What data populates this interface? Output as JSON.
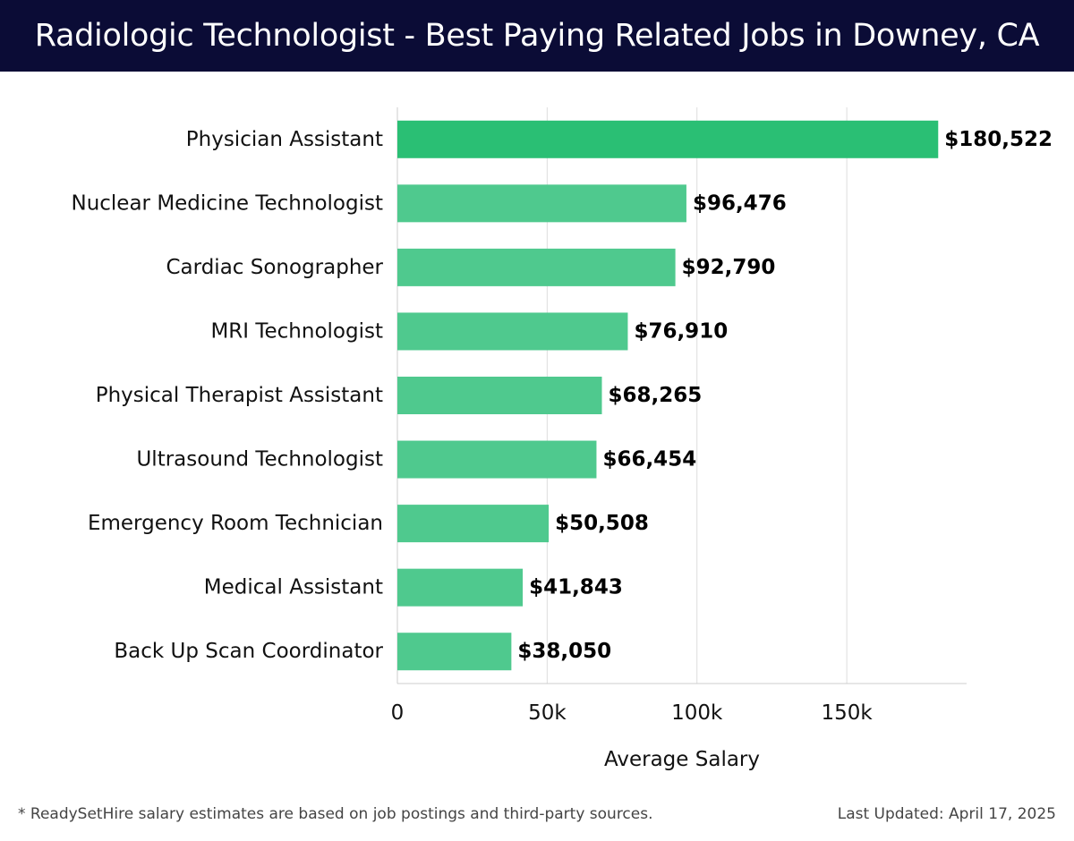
{
  "header": {
    "title": "Radiologic Technologist - Best Paying Related Jobs in Downey, CA"
  },
  "footer": {
    "note": "* ReadySetHire salary estimates are based on job postings and third-party sources.",
    "updated": "Last Updated: April 17, 2025"
  },
  "colors": {
    "header_bg": "#0b0c36",
    "bar_top": "#2abf74",
    "bar": "#4fc98e",
    "grid": "#dddddd"
  },
  "chart_data": {
    "type": "bar",
    "orientation": "horizontal",
    "title": "Radiologic Technologist - Best Paying Related Jobs in Downey, CA",
    "xlabel": "Average Salary",
    "ylabel": "",
    "xlim": [
      0,
      190000
    ],
    "xticks": [
      0,
      50000,
      100000,
      150000
    ],
    "xtick_labels": [
      "0",
      "50k",
      "100k",
      "150k"
    ],
    "grid": "vertical",
    "categories": [
      "Physician Assistant",
      "Nuclear Medicine Technologist",
      "Cardiac Sonographer",
      "MRI Technologist",
      "Physical Therapist Assistant",
      "Ultrasound Technologist",
      "Emergency Room Technician",
      "Medical Assistant",
      "Back Up Scan Coordinator"
    ],
    "values": [
      180522,
      96476,
      92790,
      76910,
      68265,
      66454,
      50508,
      41843,
      38050
    ],
    "value_labels": [
      "$180,522",
      "$96,476",
      "$92,790",
      "$76,910",
      "$68,265",
      "$66,454",
      "$50,508",
      "$41,843",
      "$38,050"
    ]
  }
}
